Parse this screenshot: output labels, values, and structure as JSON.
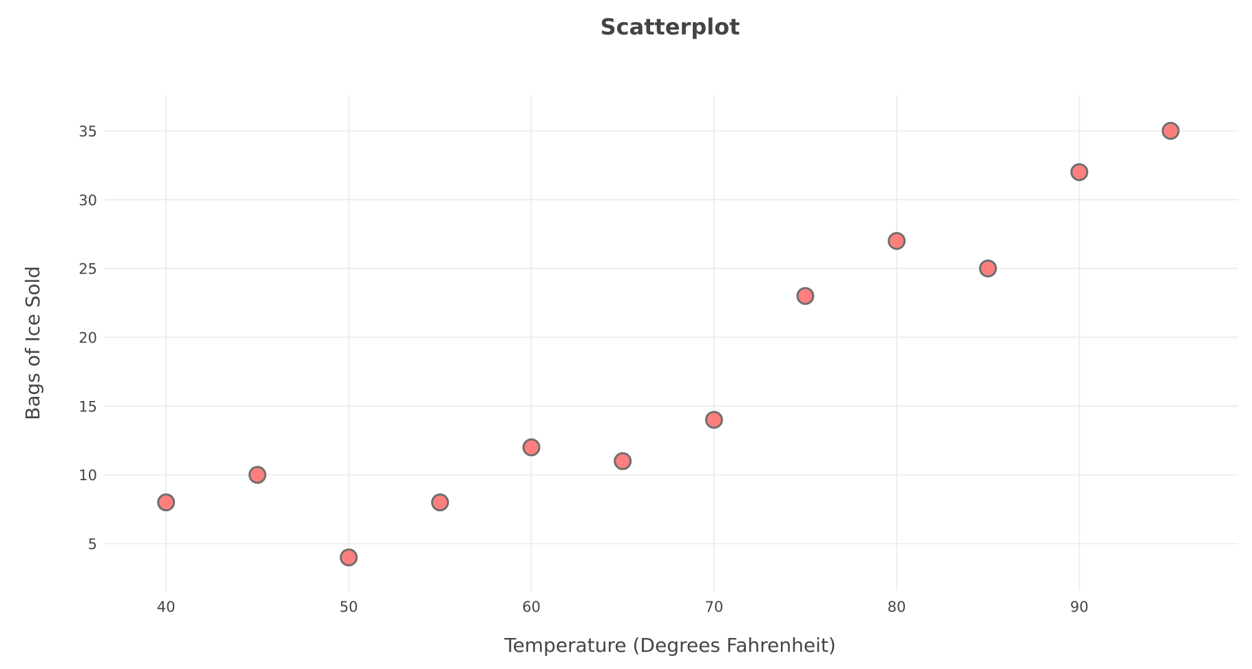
{
  "chart_data": {
    "type": "scatter",
    "title": "Scatterplot",
    "xlabel": "Temperature (Degrees Fahrenheit)",
    "ylabel": "Bags of Ice Sold",
    "x": [
      40,
      45,
      50,
      55,
      60,
      65,
      70,
      75,
      80,
      85,
      90,
      95
    ],
    "y": [
      8,
      10,
      4,
      8,
      12,
      11,
      14,
      23,
      27,
      25,
      32,
      35
    ],
    "xlim": [
      36.6,
      98.7
    ],
    "ylim": [
      1.6,
      37.6
    ],
    "xticks": [
      "40",
      "50",
      "60",
      "70",
      "80",
      "90"
    ],
    "yticks": [
      "5",
      "10",
      "15",
      "20",
      "25",
      "30",
      "35"
    ],
    "grid": true,
    "legend": "none",
    "marker_fill": "#ff7f7f",
    "marker_stroke": "#6e6e6e",
    "grid_color": "#eeeeee"
  }
}
